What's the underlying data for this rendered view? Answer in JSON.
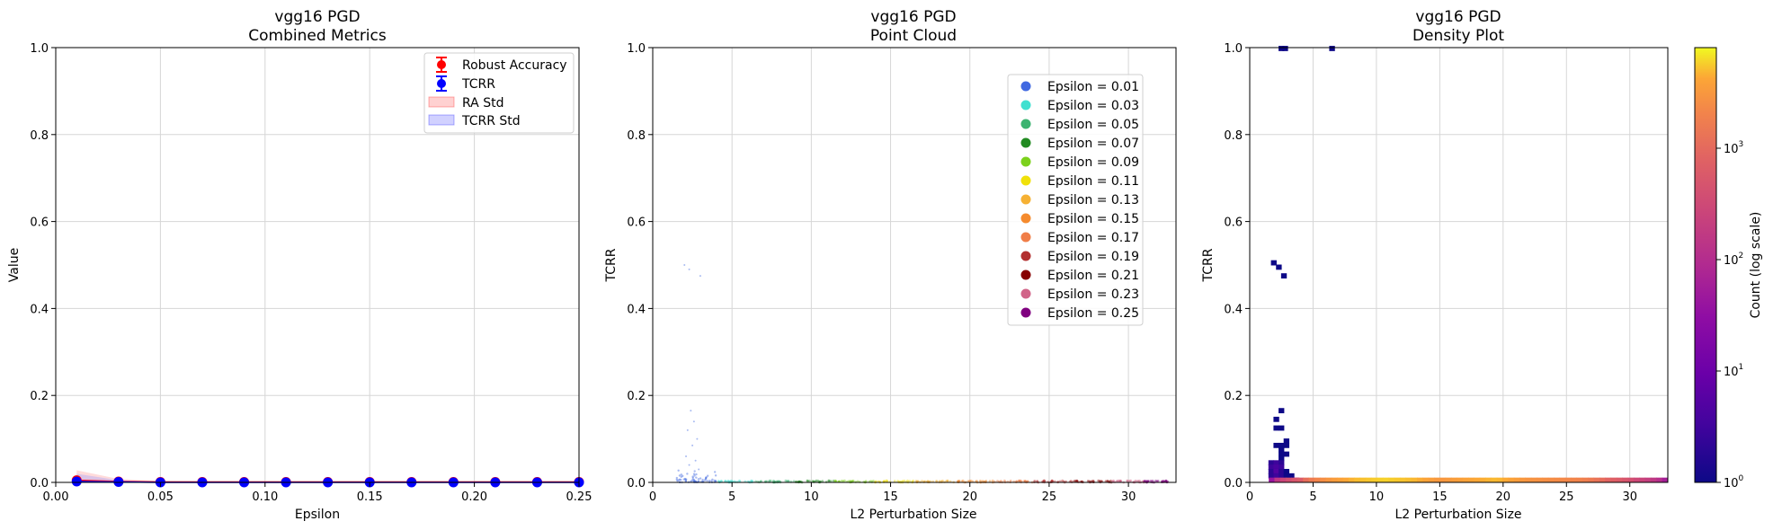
{
  "chart_data": [
    {
      "type": "line",
      "title_line1": "vgg16 PGD",
      "title_line2": "Combined Metrics",
      "xlabel": "Epsilon",
      "ylabel": "Value",
      "xlim": [
        0,
        0.25
      ],
      "ylim": [
        0,
        1
      ],
      "xticks": [
        "0.00",
        "0.05",
        "0.10",
        "0.15",
        "0.20",
        "0.25"
      ],
      "yticks": [
        "0.0",
        "0.2",
        "0.4",
        "0.6",
        "0.8",
        "1.0"
      ],
      "grid": true,
      "legend_position": "upper right",
      "x": [
        0.01,
        0.03,
        0.05,
        0.07,
        0.09,
        0.11,
        0.13,
        0.15,
        0.17,
        0.19,
        0.21,
        0.23,
        0.25
      ],
      "series": [
        {
          "name": "Robust Accuracy",
          "color": "#ff0000",
          "marker": "errorbar-circle",
          "values": [
            0.005,
            0.002,
            0.001,
            0.001,
            0.001,
            0.001,
            0.001,
            0.001,
            0.001,
            0.001,
            0.001,
            0.001,
            0.001
          ]
        },
        {
          "name": "TCRR",
          "color": "#0000ff",
          "marker": "errorbar-circle",
          "values": [
            0.002,
            0.001,
            0.0,
            0.0,
            0.0,
            0.0,
            0.0,
            0.0,
            0.0,
            0.0,
            0.0,
            0.0,
            0.0
          ]
        }
      ],
      "bands": [
        {
          "name": "RA Std",
          "color": "#ff9999",
          "lower": [
            0,
            0,
            0,
            0,
            0,
            0,
            0,
            0,
            0,
            0,
            0,
            0,
            0
          ],
          "upper": [
            0.028,
            0.008,
            0.003,
            0.002,
            0.002,
            0.002,
            0.002,
            0.002,
            0.002,
            0.002,
            0.002,
            0.002,
            0.002
          ]
        },
        {
          "name": "TCRR Std",
          "color": "#9999ff",
          "lower": [
            0,
            0,
            0,
            0,
            0,
            0,
            0,
            0,
            0,
            0,
            0,
            0,
            0
          ],
          "upper": [
            0.02,
            0.005,
            0.002,
            0.001,
            0.001,
            0.001,
            0.001,
            0.001,
            0.001,
            0.001,
            0.001,
            0.001,
            0.001
          ]
        }
      ]
    },
    {
      "type": "scatter",
      "title_line1": "vgg16 PGD",
      "title_line2": "Point Cloud",
      "xlabel": "L2 Perturbation Size",
      "ylabel": "TCRR",
      "xlim": [
        0,
        33
      ],
      "ylim": [
        0,
        1
      ],
      "xticks": [
        "0",
        "5",
        "10",
        "15",
        "20",
        "25",
        "30"
      ],
      "yticks": [
        "0.0",
        "0.2",
        "0.4",
        "0.6",
        "0.8",
        "1.0"
      ],
      "grid": true,
      "legend_position": "upper right",
      "series": [
        {
          "name": "Epsilon = 0.01",
          "color": "#4169e1",
          "x_range": [
            1.5,
            4.0
          ]
        },
        {
          "name": "Epsilon = 0.03",
          "color": "#40e0d0",
          "x_range": [
            4.0,
            6.5
          ]
        },
        {
          "name": "Epsilon = 0.05",
          "color": "#3cb371",
          "x_range": [
            6.5,
            9.0
          ]
        },
        {
          "name": "Epsilon = 0.07",
          "color": "#228b22",
          "x_range": [
            9.0,
            11.5
          ]
        },
        {
          "name": "Epsilon = 0.09",
          "color": "#7cd11c",
          "x_range": [
            11.5,
            14.0
          ]
        },
        {
          "name": "Epsilon = 0.11",
          "color": "#f0e10a",
          "x_range": [
            14.0,
            16.5
          ]
        },
        {
          "name": "Epsilon = 0.13",
          "color": "#f6b134",
          "x_range": [
            16.5,
            19.0
          ]
        },
        {
          "name": "Epsilon = 0.15",
          "color": "#f58b2e",
          "x_range": [
            19.0,
            21.5
          ]
        },
        {
          "name": "Epsilon = 0.17",
          "color": "#f07e48",
          "x_range": [
            21.5,
            24.0
          ]
        },
        {
          "name": "Epsilon = 0.19",
          "color": "#b22f2f",
          "x_range": [
            24.0,
            26.5
          ]
        },
        {
          "name": "Epsilon = 0.21",
          "color": "#870000",
          "x_range": [
            26.5,
            29.0
          ]
        },
        {
          "name": "Epsilon = 0.23",
          "color": "#d16488",
          "x_range": [
            29.0,
            31.0
          ]
        },
        {
          "name": "Epsilon = 0.25",
          "color": "#800080",
          "x_range": [
            31.0,
            32.5
          ]
        }
      ],
      "outliers": [
        {
          "x": 2.0,
          "y": 0.5
        },
        {
          "x": 2.3,
          "y": 0.49
        },
        {
          "x": 3.0,
          "y": 0.475
        },
        {
          "x": 2.4,
          "y": 0.165
        },
        {
          "x": 2.6,
          "y": 0.14
        },
        {
          "x": 2.2,
          "y": 0.12
        },
        {
          "x": 2.8,
          "y": 0.1
        },
        {
          "x": 2.5,
          "y": 0.085
        },
        {
          "x": 2.1,
          "y": 0.06
        },
        {
          "x": 2.7,
          "y": 0.05
        },
        {
          "x": 2.3,
          "y": 0.04
        },
        {
          "x": 2.9,
          "y": 0.03
        }
      ]
    },
    {
      "type": "heatmap",
      "title_line1": "vgg16 PGD",
      "title_line2": "Density Plot",
      "xlabel": "L2 Perturbation Size",
      "ylabel": "TCRR",
      "xlim": [
        0,
        33
      ],
      "ylim": [
        0,
        1
      ],
      "xticks": [
        "0",
        "5",
        "10",
        "15",
        "20",
        "25",
        "30"
      ],
      "yticks": [
        "0.0",
        "0.2",
        "0.4",
        "0.6",
        "0.8",
        "1.0"
      ],
      "grid": true,
      "colormap": "plasma",
      "colorbar_label": "Count (log scale)",
      "colorbar_scale": "log",
      "colorbar_range": [
        1,
        8000
      ],
      "colorbar_ticks": [
        {
          "base": "10",
          "exp": "0",
          "value": 1
        },
        {
          "base": "10",
          "exp": "1",
          "value": 10
        },
        {
          "base": "10",
          "exp": "2",
          "value": 100
        },
        {
          "base": "10",
          "exp": "3",
          "value": 1000
        }
      ],
      "cells": [
        {
          "x": 2.5,
          "y": 0.998,
          "count": 1
        },
        {
          "x": 2.8,
          "y": 0.998,
          "count": 1
        },
        {
          "x": 6.5,
          "y": 0.998,
          "count": 1
        },
        {
          "x": 1.9,
          "y": 0.505,
          "count": 1
        },
        {
          "x": 2.3,
          "y": 0.495,
          "count": 1
        },
        {
          "x": 2.7,
          "y": 0.475,
          "count": 1
        },
        {
          "x": 2.5,
          "y": 0.165,
          "count": 1
        },
        {
          "x": 2.1,
          "y": 0.145,
          "count": 1
        },
        {
          "x": 2.1,
          "y": 0.125,
          "count": 1
        },
        {
          "x": 2.5,
          "y": 0.125,
          "count": 1
        },
        {
          "x": 2.9,
          "y": 0.095,
          "count": 1
        },
        {
          "x": 2.9,
          "y": 0.085,
          "count": 1
        },
        {
          "x": 2.1,
          "y": 0.085,
          "count": 1
        },
        {
          "x": 2.5,
          "y": 0.085,
          "count": 1
        },
        {
          "x": 2.5,
          "y": 0.075,
          "count": 1
        },
        {
          "x": 2.5,
          "y": 0.065,
          "count": 1
        },
        {
          "x": 2.9,
          "y": 0.065,
          "count": 1
        },
        {
          "x": 2.5,
          "y": 0.055,
          "count": 1
        },
        {
          "x": 1.7,
          "y": 0.045,
          "count": 2
        },
        {
          "x": 2.1,
          "y": 0.045,
          "count": 3
        },
        {
          "x": 2.5,
          "y": 0.045,
          "count": 2
        },
        {
          "x": 1.7,
          "y": 0.035,
          "count": 3
        },
        {
          "x": 2.1,
          "y": 0.035,
          "count": 4
        },
        {
          "x": 2.5,
          "y": 0.035,
          "count": 3
        },
        {
          "x": 1.7,
          "y": 0.025,
          "count": 2
        },
        {
          "x": 2.1,
          "y": 0.025,
          "count": 5
        },
        {
          "x": 2.5,
          "y": 0.025,
          "count": 2
        },
        {
          "x": 2.9,
          "y": 0.025,
          "count": 1
        },
        {
          "x": 1.7,
          "y": 0.015,
          "count": 2
        },
        {
          "x": 2.1,
          "y": 0.015,
          "count": 3
        },
        {
          "x": 2.5,
          "y": 0.015,
          "count": 2
        },
        {
          "x": 2.9,
          "y": 0.015,
          "count": 1
        },
        {
          "x": 3.3,
          "y": 0.015,
          "count": 1
        },
        {
          "x": 3.7,
          "y": 0.005,
          "count": 30
        }
      ],
      "bottom_row": {
        "y": 0.005,
        "x_start": 1.5,
        "x_end": 33,
        "peak_counts": [
          40,
          600,
          3000,
          5000,
          6000,
          5000,
          3000,
          4000,
          5000,
          3000,
          2500,
          2000,
          800,
          300,
          60
        ]
      }
    }
  ]
}
